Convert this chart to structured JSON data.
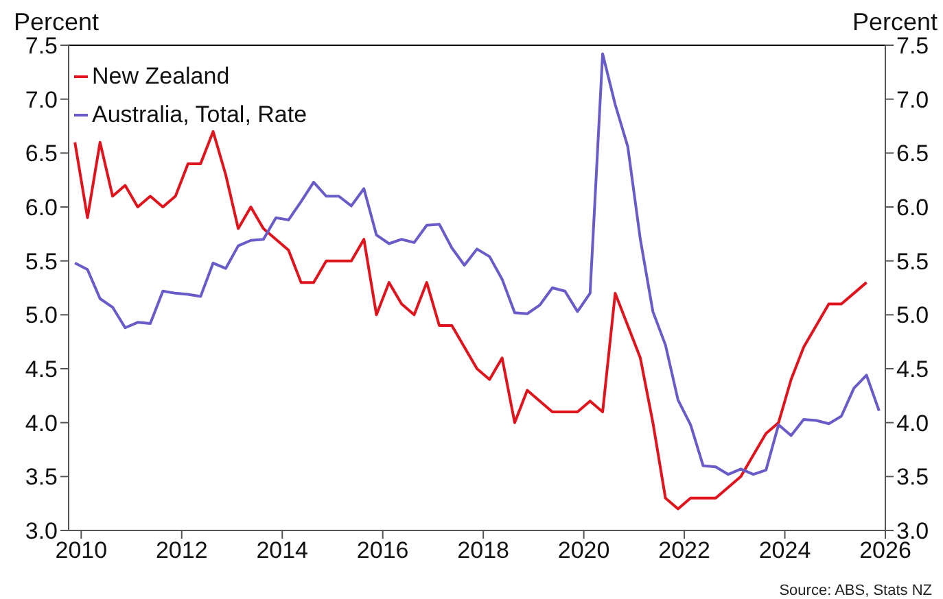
{
  "chart_data": {
    "type": "line",
    "ylabel": "Percent",
    "y2label": "Percent",
    "annotations": [
      "Source: ABS, Stats NZ"
    ],
    "x": [
      2009.875,
      2010.125,
      2010.375,
      2010.625,
      2010.875,
      2011.125,
      2011.375,
      2011.625,
      2011.875,
      2012.125,
      2012.375,
      2012.625,
      2012.875,
      2013.125,
      2013.375,
      2013.625,
      2013.875,
      2014.125,
      2014.375,
      2014.625,
      2014.875,
      2015.125,
      2015.375,
      2015.625,
      2015.875,
      2016.125,
      2016.375,
      2016.625,
      2016.875,
      2017.125,
      2017.375,
      2017.625,
      2017.875,
      2018.125,
      2018.375,
      2018.625,
      2018.875,
      2019.125,
      2019.375,
      2019.625,
      2019.875,
      2020.125,
      2020.375,
      2020.625,
      2020.875,
      2021.125,
      2021.375,
      2021.625,
      2021.875,
      2022.125,
      2022.375,
      2022.625,
      2022.875,
      2023.125,
      2023.375,
      2023.625,
      2023.875,
      2024.125,
      2024.375,
      2024.625,
      2024.875,
      2025.125,
      2025.375,
      2025.625,
      2025.875
    ],
    "series": [
      {
        "name": "New Zealand",
        "color": "#e0141c",
        "values": [
          6.6,
          5.9,
          6.6,
          6.1,
          6.2,
          6.0,
          6.1,
          6.0,
          6.1,
          6.4,
          6.4,
          6.7,
          6.3,
          5.8,
          6.0,
          5.8,
          5.7,
          5.6,
          5.3,
          5.3,
          5.5,
          5.5,
          5.5,
          5.7,
          5.0,
          5.3,
          5.1,
          5.0,
          5.3,
          4.9,
          4.9,
          4.7,
          4.5,
          4.4,
          4.6,
          4.0,
          4.3,
          4.2,
          4.1,
          4.1,
          4.1,
          4.2,
          4.1,
          5.2,
          4.9,
          4.6,
          4.0,
          3.3,
          3.2,
          3.3,
          3.3,
          3.3,
          3.4,
          3.5,
          3.7,
          3.9,
          4.0,
          4.4,
          4.7,
          4.9,
          5.1,
          5.1,
          5.2,
          5.3,
          null
        ]
      },
      {
        "name": "Australia, Total, Rate",
        "color": "#6a5cc8",
        "values": [
          5.48,
          5.42,
          5.15,
          5.07,
          4.88,
          4.93,
          4.92,
          5.22,
          5.2,
          5.19,
          5.17,
          5.48,
          5.43,
          5.64,
          5.69,
          5.7,
          5.9,
          5.88,
          6.05,
          6.23,
          6.1,
          6.1,
          6.01,
          6.17,
          5.74,
          5.66,
          5.7,
          5.67,
          5.83,
          5.84,
          5.62,
          5.46,
          5.61,
          5.54,
          5.33,
          5.02,
          5.01,
          5.09,
          5.25,
          5.22,
          5.03,
          5.2,
          7.42,
          6.95,
          6.56,
          5.7,
          5.03,
          4.72,
          4.21,
          3.98,
          3.6,
          3.59,
          3.52,
          3.57,
          3.52,
          3.56,
          3.98,
          3.88,
          4.03,
          4.02,
          3.99,
          4.06,
          4.32,
          4.44,
          4.11
        ]
      }
    ],
    "xlim": [
      2009.75,
      2026
    ],
    "xticks": [
      2010,
      2012,
      2014,
      2016,
      2018,
      2020,
      2022,
      2024,
      2026
    ],
    "ylim": [
      3,
      7.5
    ],
    "yticks": [
      {
        "value": 3,
        "label": "3.0"
      },
      {
        "value": 3.5,
        "label": "3.5"
      },
      {
        "value": 4,
        "label": "4.0"
      },
      {
        "value": 4.5,
        "label": "4.5"
      },
      {
        "value": 5,
        "label": "5.0"
      },
      {
        "value": 5.5,
        "label": "5.5"
      },
      {
        "value": 6,
        "label": "6.0"
      },
      {
        "value": 6.5,
        "label": "6.5"
      },
      {
        "value": 7,
        "label": "7.0"
      },
      {
        "value": 7.5,
        "label": "7.5"
      }
    ],
    "y2lim": [
      3,
      7.5
    ],
    "y2ticks": [
      {
        "value": 3,
        "label": "3.0"
      },
      {
        "value": 3.5,
        "label": "3.5"
      },
      {
        "value": 4,
        "label": "4.0"
      },
      {
        "value": 4.5,
        "label": "4.5"
      },
      {
        "value": 5,
        "label": "5.0"
      },
      {
        "value": 5.5,
        "label": "5.5"
      },
      {
        "value": 6,
        "label": "6.0"
      },
      {
        "value": 6.5,
        "label": "6.5"
      },
      {
        "value": 7,
        "label": "7.0"
      },
      {
        "value": 7.5,
        "label": "7.5"
      }
    ],
    "grid": false,
    "legend": "top left",
    "marker": "none",
    "line_style": "solid"
  }
}
